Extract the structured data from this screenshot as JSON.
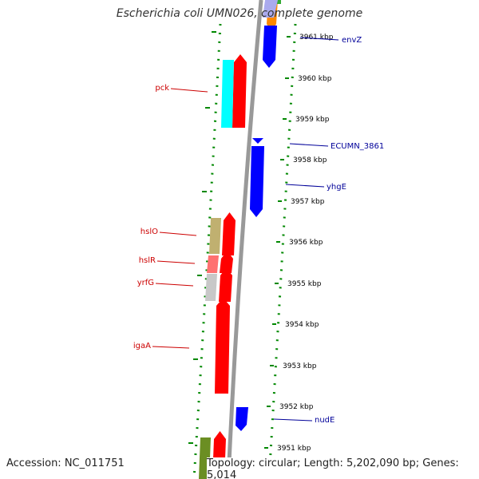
{
  "title": "Escherichia coli UMN026, complete genome",
  "footer": {
    "accession": "Accession: NC_011751",
    "topology": "Topology: circular; Length: 5,202,090 bp; Genes: 5,014"
  },
  "colors": {
    "forward_gene": "#ff0000",
    "reverse_gene": "#0000ff",
    "forward_label": "#cc0000",
    "reverse_label": "#000099",
    "backbone": "#999999",
    "ruler_dots": "#008800",
    "feature_pck": "#00ffff",
    "feature_hslO": "#c0b070",
    "feature_hslR": "#ff7070",
    "feature_yrfG": "#c8c8c8",
    "feature_bottom": "#6b8e23"
  },
  "scale": {
    "unit": "kbp",
    "ticks": [
      "3961 kbp",
      "3960 kbp",
      "3959 kbp",
      "3958 kbp",
      "3957 kbp",
      "3956 kbp",
      "3955 kbp",
      "3954 kbp",
      "3953 kbp",
      "3952 kbp",
      "3951 kbp"
    ]
  },
  "genes": [
    {
      "name": "envZ",
      "strand": "reverse"
    },
    {
      "name": "pck",
      "strand": "forward"
    },
    {
      "name": "ECUMN_3861",
      "strand": "reverse"
    },
    {
      "name": "yhgE",
      "strand": "reverse"
    },
    {
      "name": "hslO",
      "strand": "forward"
    },
    {
      "name": "hslR",
      "strand": "forward"
    },
    {
      "name": "yrfG",
      "strand": "forward"
    },
    {
      "name": "igaA",
      "strand": "forward"
    },
    {
      "name": "nudE",
      "strand": "reverse"
    }
  ]
}
